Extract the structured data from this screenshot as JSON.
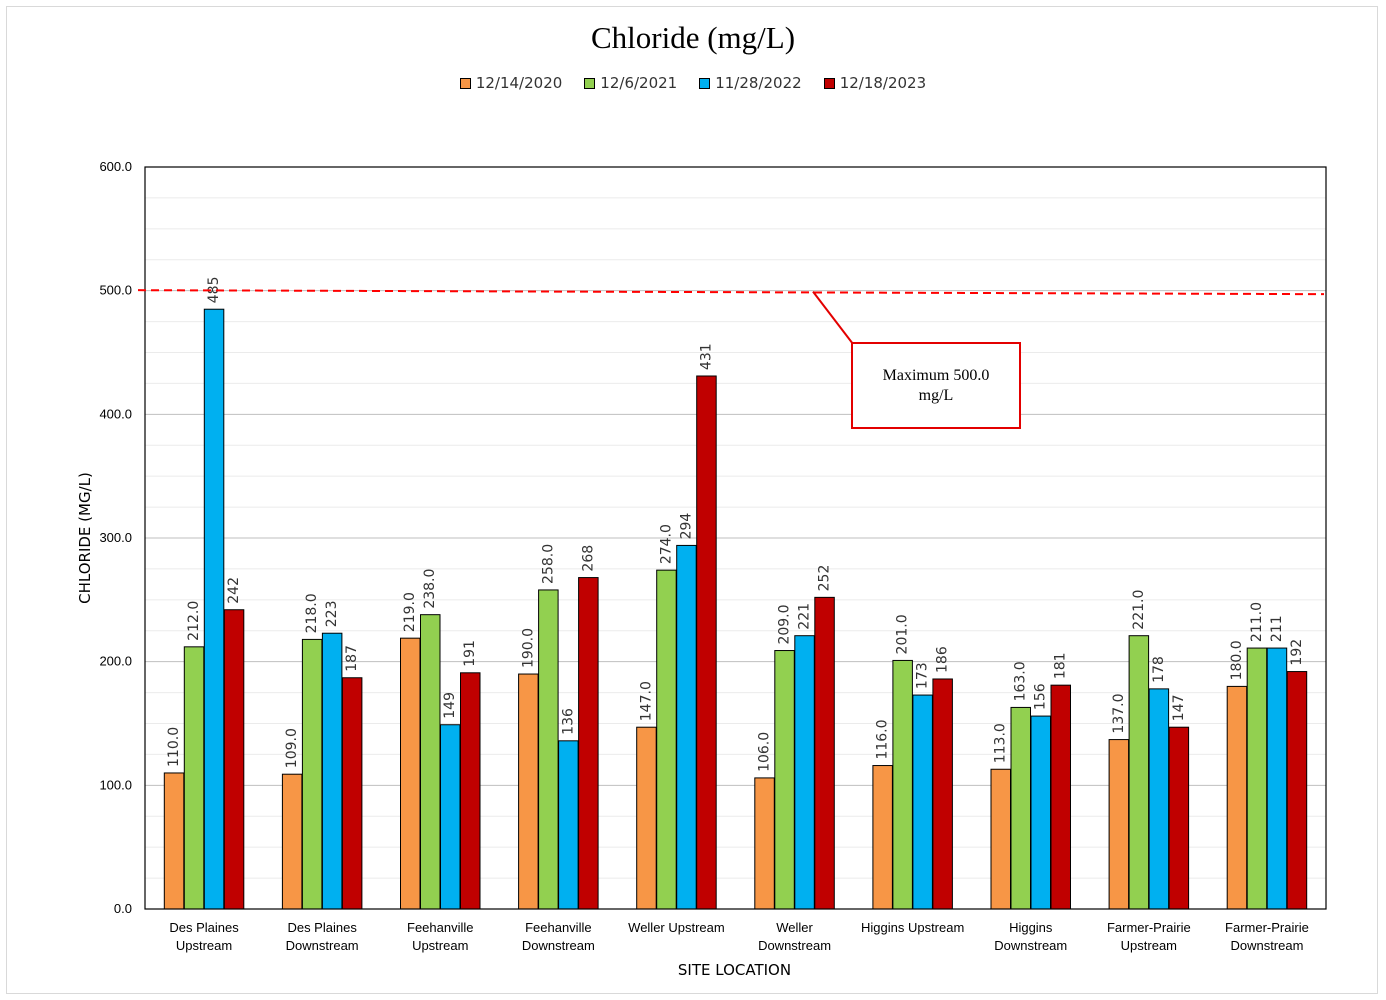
{
  "chart_data": {
    "type": "bar",
    "title": "Chloride (mg/L)",
    "xlabel": "SITE LOCATION",
    "ylabel": "CHLORIDE (MG/L)",
    "ylim": [
      0,
      600
    ],
    "yticks": [
      "0.0",
      "100.0",
      "200.0",
      "300.0",
      "400.0",
      "500.0",
      "600.0"
    ],
    "grid": true,
    "legend_position": "top",
    "categories": [
      [
        "Des Plaines",
        "Upstream"
      ],
      [
        "Des Plaines",
        "Downstream"
      ],
      [
        "Feehanville",
        "Upstream"
      ],
      [
        "Feehanville",
        "Downstream"
      ],
      [
        "Weller Upstream"
      ],
      [
        "Weller",
        "Downstream"
      ],
      [
        "Higgins Upstream"
      ],
      [
        "Higgins",
        "Downstream"
      ],
      [
        "Farmer-Prairie",
        "Upstream"
      ],
      [
        "Farmer-Prairie",
        "Downstream"
      ]
    ],
    "series": [
      {
        "name": "12/14/2020",
        "color": "#f79646",
        "values": [
          110,
          109,
          219,
          190,
          147,
          106,
          116,
          113,
          137,
          180
        ],
        "labels": [
          "110.0",
          "109.0",
          "219.0",
          "190.0",
          "147.0",
          "106.0",
          "116.0",
          "113.0",
          "137.0",
          "180.0"
        ]
      },
      {
        "name": "12/6/2021",
        "color": "#92d050",
        "values": [
          212,
          218,
          238,
          258,
          274,
          209,
          201,
          163,
          221,
          211
        ],
        "labels": [
          "212.0",
          "218.0",
          "238.0",
          "258.0",
          "274.0",
          "209.0",
          "201.0",
          "163.0",
          "221.0",
          "211.0"
        ]
      },
      {
        "name": "11/28/2022",
        "color": "#00b0f0",
        "values": [
          485,
          223,
          149,
          136,
          294,
          221,
          173,
          156,
          178,
          211
        ],
        "labels": [
          "485",
          "223",
          "149",
          "136",
          "294",
          "221",
          "173",
          "156",
          "178",
          "211"
        ]
      },
      {
        "name": "12/18/2023",
        "color": "#c00000",
        "values": [
          242,
          187,
          191,
          268,
          431,
          252,
          186,
          181,
          147,
          192
        ],
        "labels": [
          "242",
          "187",
          "191",
          "268",
          "431",
          "252",
          "186",
          "181",
          "147",
          "192"
        ]
      }
    ],
    "reference_line": {
      "value": 500,
      "color": "#ff0000",
      "style": "dashed"
    },
    "annotation": {
      "line1": "Maximum  500.0",
      "line2": "mg/L",
      "border_color": "#e30000"
    }
  }
}
